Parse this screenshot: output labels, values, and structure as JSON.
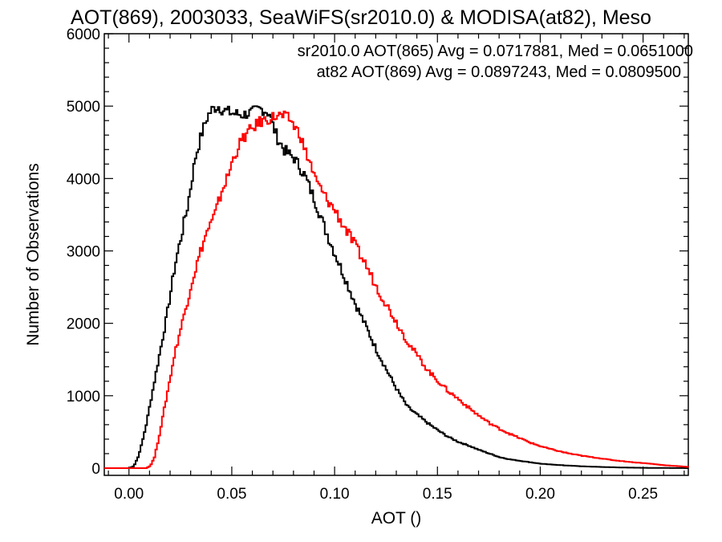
{
  "chart_data": {
    "type": "line",
    "title": "AOT(869), 2003033, SeaWiFS(sr2010.0) & MODISA(at82), Meso",
    "xlabel": "AOT ()",
    "ylabel": "Number of Observations",
    "xlim": [
      -0.012,
      0.272
    ],
    "ylim": [
      -100,
      6000
    ],
    "xticks": [
      0.0,
      0.05,
      0.1,
      0.15,
      0.2,
      0.25
    ],
    "xtick_labels": [
      "0.00",
      "0.05",
      "0.10",
      "0.15",
      "0.20",
      "0.25"
    ],
    "yticks": [
      0,
      1000,
      2000,
      3000,
      4000,
      5000,
      6000
    ],
    "ytick_labels": [
      "0",
      "1000",
      "2000",
      "3000",
      "4000",
      "5000",
      "6000"
    ],
    "grid": false,
    "legend_placement": "top-right",
    "series": [
      {
        "name": "sr2010.0",
        "color": "#000000",
        "legend_text": "sr2010.0 AOT(865) Avg = 0.0717881, Med = 0.0651000",
        "points": [
          [
            -0.012,
            0
          ],
          [
            0.0,
            0
          ],
          [
            0.002,
            30
          ],
          [
            0.004,
            150
          ],
          [
            0.006,
            350
          ],
          [
            0.008,
            600
          ],
          [
            0.01,
            900
          ],
          [
            0.012,
            1200
          ],
          [
            0.015,
            1650
          ],
          [
            0.018,
            2100
          ],
          [
            0.02,
            2450
          ],
          [
            0.022,
            2800
          ],
          [
            0.025,
            3200
          ],
          [
            0.028,
            3600
          ],
          [
            0.03,
            3950
          ],
          [
            0.032,
            4300
          ],
          [
            0.035,
            4620
          ],
          [
            0.038,
            4870
          ],
          [
            0.04,
            4950
          ],
          [
            0.043,
            5000
          ],
          [
            0.045,
            4950
          ],
          [
            0.048,
            4920
          ],
          [
            0.05,
            4900
          ],
          [
            0.055,
            4880
          ],
          [
            0.06,
            4920
          ],
          [
            0.063,
            4960
          ],
          [
            0.065,
            4950
          ],
          [
            0.068,
            4900
          ],
          [
            0.07,
            4700
          ],
          [
            0.072,
            4550
          ],
          [
            0.075,
            4400
          ],
          [
            0.078,
            4320
          ],
          [
            0.08,
            4280
          ],
          [
            0.085,
            4050
          ],
          [
            0.09,
            3700
          ],
          [
            0.095,
            3300
          ],
          [
            0.1,
            2950
          ],
          [
            0.105,
            2600
          ],
          [
            0.11,
            2250
          ],
          [
            0.115,
            1950
          ],
          [
            0.12,
            1630
          ],
          [
            0.125,
            1350
          ],
          [
            0.13,
            1080
          ],
          [
            0.135,
            850
          ],
          [
            0.14,
            730
          ],
          [
            0.145,
            620
          ],
          [
            0.15,
            520
          ],
          [
            0.155,
            430
          ],
          [
            0.16,
            360
          ],
          [
            0.165,
            310
          ],
          [
            0.17,
            250
          ],
          [
            0.175,
            200
          ],
          [
            0.18,
            150
          ],
          [
            0.185,
            120
          ],
          [
            0.19,
            100
          ],
          [
            0.195,
            80
          ],
          [
            0.2,
            60
          ],
          [
            0.21,
            40
          ],
          [
            0.22,
            25
          ],
          [
            0.23,
            15
          ],
          [
            0.24,
            8
          ],
          [
            0.25,
            4
          ],
          [
            0.26,
            2
          ],
          [
            0.272,
            0
          ]
        ]
      },
      {
        "name": "at82",
        "color": "#ff0000",
        "legend_text": "at82 AOT(869) Avg = 0.0897243, Med = 0.0809500",
        "points": [
          [
            -0.012,
            0
          ],
          [
            0.008,
            0
          ],
          [
            0.01,
            30
          ],
          [
            0.012,
            150
          ],
          [
            0.014,
            400
          ],
          [
            0.016,
            700
          ],
          [
            0.018,
            1000
          ],
          [
            0.02,
            1300
          ],
          [
            0.022,
            1600
          ],
          [
            0.025,
            1950
          ],
          [
            0.028,
            2300
          ],
          [
            0.03,
            2550
          ],
          [
            0.033,
            2850
          ],
          [
            0.035,
            3050
          ],
          [
            0.038,
            3300
          ],
          [
            0.04,
            3400
          ],
          [
            0.042,
            3550
          ],
          [
            0.045,
            3850
          ],
          [
            0.048,
            4050
          ],
          [
            0.05,
            4250
          ],
          [
            0.053,
            4450
          ],
          [
            0.055,
            4550
          ],
          [
            0.058,
            4650
          ],
          [
            0.06,
            4700
          ],
          [
            0.063,
            4780
          ],
          [
            0.065,
            4800
          ],
          [
            0.068,
            4830
          ],
          [
            0.07,
            4850
          ],
          [
            0.073,
            4870
          ],
          [
            0.075,
            4850
          ],
          [
            0.078,
            4820
          ],
          [
            0.08,
            4720
          ],
          [
            0.083,
            4600
          ],
          [
            0.085,
            4400
          ],
          [
            0.088,
            4200
          ],
          [
            0.09,
            4000
          ],
          [
            0.093,
            3850
          ],
          [
            0.095,
            3750
          ],
          [
            0.1,
            3550
          ],
          [
            0.105,
            3300
          ],
          [
            0.11,
            3050
          ],
          [
            0.115,
            2800
          ],
          [
            0.12,
            2500
          ],
          [
            0.125,
            2250
          ],
          [
            0.13,
            2000
          ],
          [
            0.135,
            1750
          ],
          [
            0.14,
            1550
          ],
          [
            0.145,
            1350
          ],
          [
            0.15,
            1200
          ],
          [
            0.155,
            1060
          ],
          [
            0.16,
            950
          ],
          [
            0.165,
            830
          ],
          [
            0.17,
            720
          ],
          [
            0.175,
            620
          ],
          [
            0.18,
            540
          ],
          [
            0.185,
            470
          ],
          [
            0.19,
            410
          ],
          [
            0.195,
            350
          ],
          [
            0.2,
            300
          ],
          [
            0.205,
            260
          ],
          [
            0.21,
            225
          ],
          [
            0.215,
            195
          ],
          [
            0.22,
            170
          ],
          [
            0.225,
            150
          ],
          [
            0.23,
            130
          ],
          [
            0.235,
            110
          ],
          [
            0.24,
            95
          ],
          [
            0.245,
            80
          ],
          [
            0.25,
            70
          ],
          [
            0.255,
            55
          ],
          [
            0.26,
            40
          ],
          [
            0.265,
            30
          ],
          [
            0.27,
            20
          ],
          [
            0.272,
            15
          ]
        ]
      }
    ]
  }
}
